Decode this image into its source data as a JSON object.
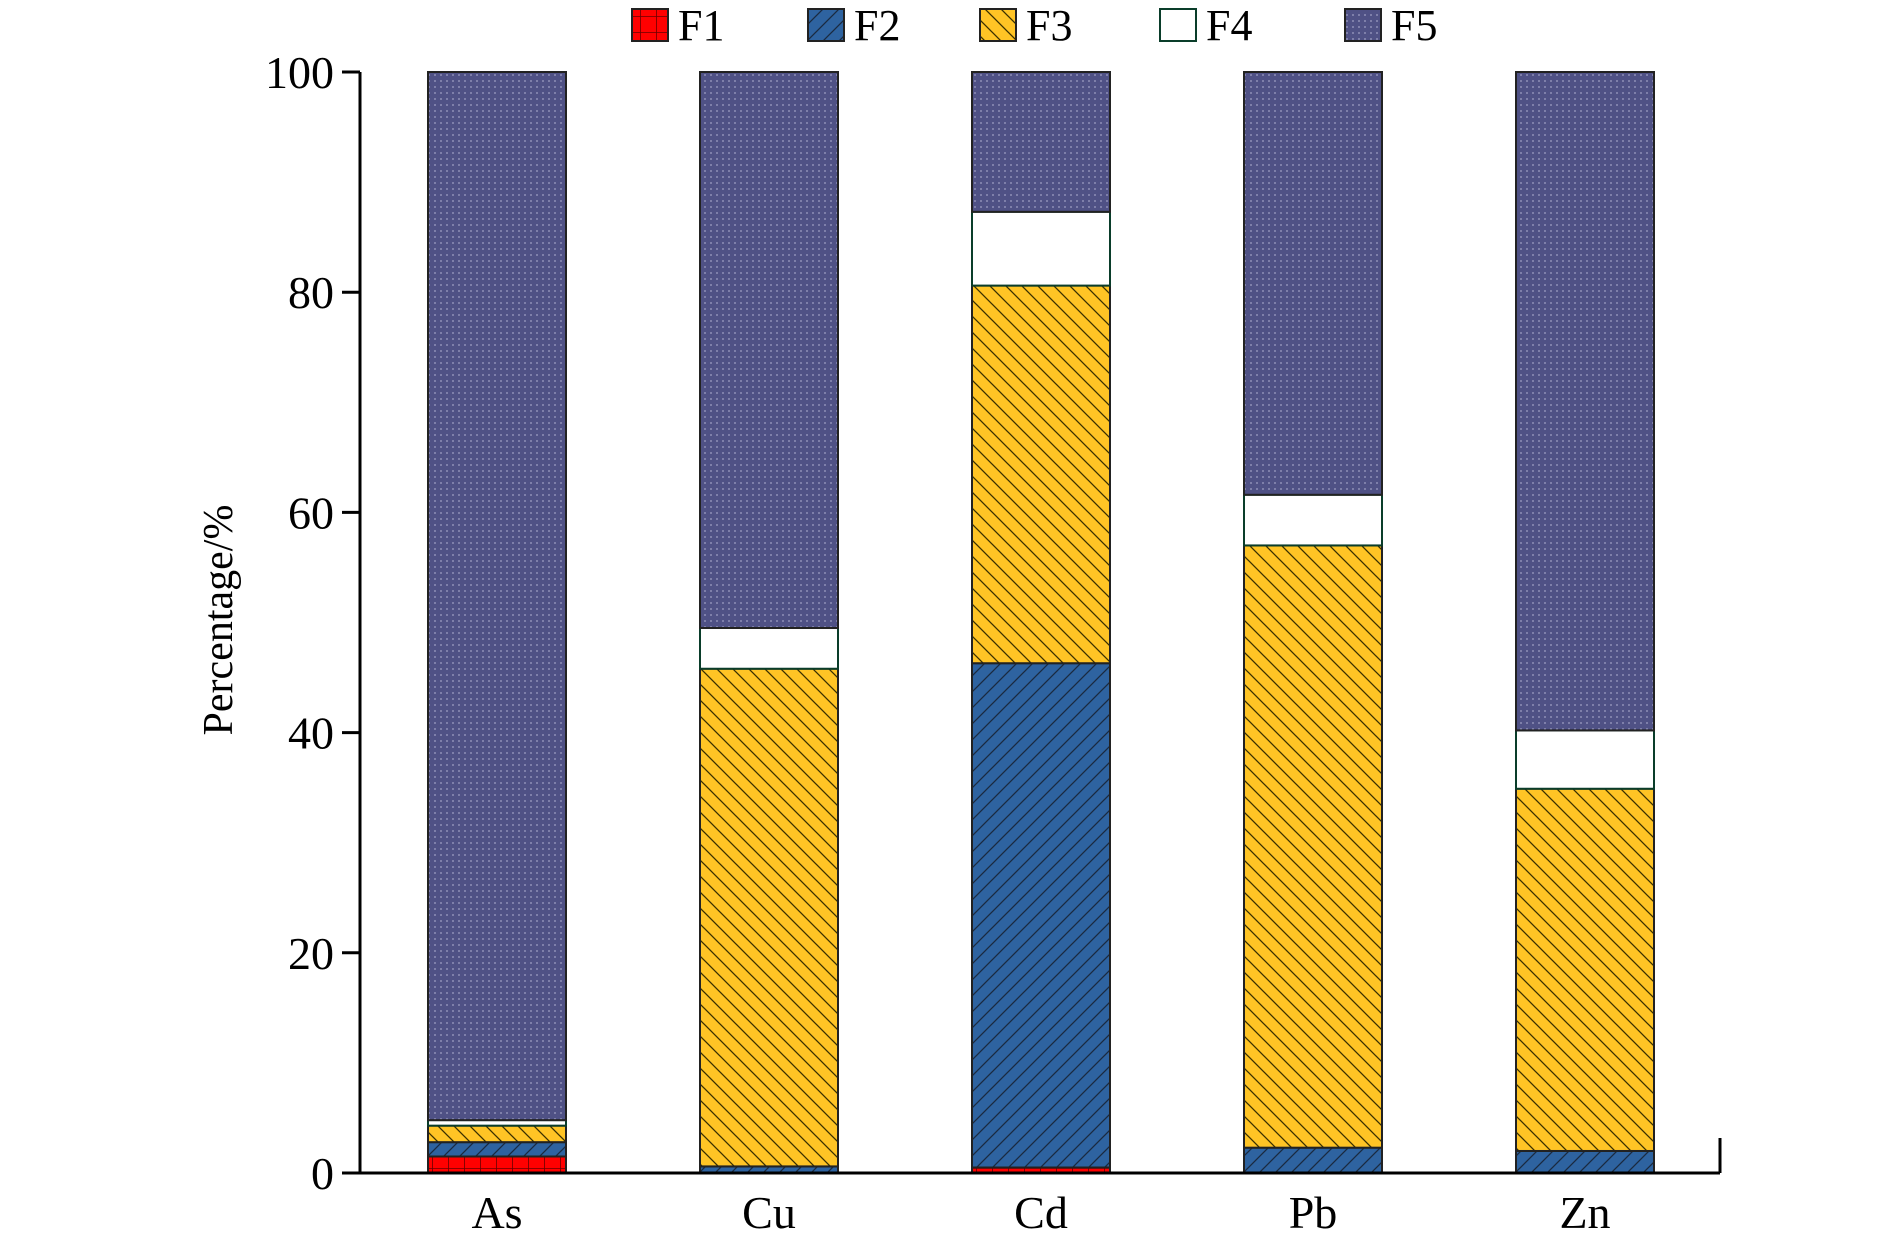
{
  "chart_data": {
    "type": "bar",
    "stacked": true,
    "categories": [
      "As",
      "Cu",
      "Cd",
      "Pb",
      "Zn"
    ],
    "series": [
      {
        "name": "F1",
        "color": "#FF0000",
        "pattern": "grid",
        "values": [
          1.5,
          0.0,
          0.5,
          0.0,
          0.0
        ]
      },
      {
        "name": "F2",
        "color": "#2E63A0",
        "pattern": "diagonal-forward",
        "values": [
          1.3,
          0.6,
          45.8,
          2.3,
          2.0
        ]
      },
      {
        "name": "F3",
        "color": "#FFC425",
        "pattern": "diagonal-back",
        "values": [
          1.5,
          45.2,
          34.3,
          54.7,
          32.9
        ]
      },
      {
        "name": "F4",
        "color": "#FFFFFF",
        "pattern": "none",
        "values": [
          0.5,
          3.7,
          6.7,
          4.6,
          5.3
        ]
      },
      {
        "name": "F5",
        "color": "#4F5185",
        "pattern": "dots",
        "values": [
          95.2,
          50.5,
          12.7,
          38.4,
          59.8
        ]
      }
    ],
    "title": "",
    "xlabel": "",
    "ylabel": "Percentage/%",
    "ylim": [
      0,
      100
    ],
    "yticks": [
      0,
      20,
      40,
      60,
      80,
      100
    ],
    "legend_position": "top",
    "grid": false
  }
}
